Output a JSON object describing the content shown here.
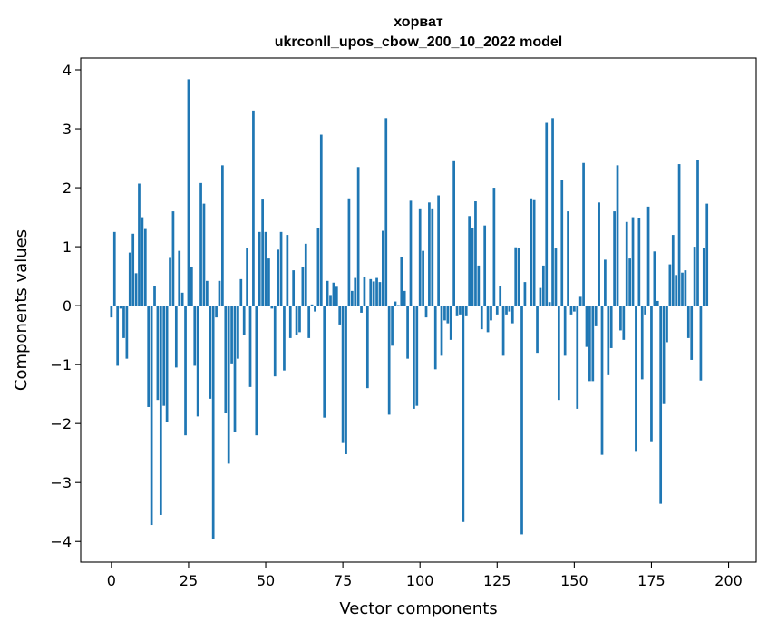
{
  "chart_data": {
    "type": "bar",
    "title": "хорват",
    "subtitle": "ukrconll_upos_cbow_200_10_2022 model",
    "xlabel": "Vector components",
    "ylabel": "Components values",
    "xlim": [
      -9.95,
      208.95
    ],
    "ylim": [
      -4.35,
      4.2
    ],
    "xticks": [
      0,
      25,
      50,
      75,
      100,
      125,
      150,
      175,
      200
    ],
    "yticks": [
      -4,
      -3,
      -2,
      -1,
      0,
      1,
      2,
      3,
      4
    ],
    "ytick_labels": [
      "−4",
      "−3",
      "−2",
      "−1",
      "0",
      "1",
      "2",
      "3",
      "4"
    ],
    "bar_color": "#1f77b4",
    "grid": false,
    "values": [
      -0.2,
      1.25,
      -1.02,
      -0.05,
      -0.55,
      -0.9,
      0.9,
      1.22,
      0.55,
      2.07,
      1.5,
      1.3,
      -1.72,
      -3.72,
      0.33,
      -1.6,
      -3.55,
      -1.7,
      -1.98,
      0.81,
      1.6,
      -1.05,
      0.93,
      0.22,
      -2.2,
      3.84,
      0.66,
      -1.02,
      -1.88,
      2.08,
      1.73,
      0.42,
      -1.58,
      -3.95,
      -0.2,
      0.42,
      2.38,
      -1.82,
      -2.68,
      -0.98,
      -2.15,
      -0.9,
      0.45,
      -0.5,
      0.98,
      -1.38,
      3.31,
      -2.2,
      1.25,
      1.8,
      1.25,
      0.8,
      -0.05,
      -1.2,
      0.95,
      1.25,
      -1.1,
      1.2,
      -0.55,
      0.6,
      -0.5,
      -0.45,
      0.66,
      1.05,
      -0.55,
      0.02,
      -0.1,
      1.32,
      2.9,
      -1.9,
      0.42,
      0.18,
      0.39,
      0.32,
      -0.32,
      -2.33,
      -2.52,
      1.82,
      0.25,
      0.47,
      2.35,
      -0.12,
      0.48,
      -1.4,
      0.45,
      0.41,
      0.47,
      0.4,
      1.27,
      3.18,
      -1.85,
      -0.68,
      0.07,
      0.01,
      0.82,
      0.25,
      -0.9,
      1.78,
      -1.75,
      -1.7,
      1.65,
      0.93,
      -0.2,
      1.75,
      1.65,
      -1.08,
      1.87,
      -0.85,
      -0.25,
      -0.3,
      -0.58,
      2.45,
      -0.18,
      -0.15,
      -3.67,
      -0.18,
      1.52,
      1.32,
      1.77,
      0.68,
      -0.4,
      1.36,
      -0.45,
      -0.25,
      2.0,
      -0.15,
      0.33,
      -0.85,
      -0.15,
      -0.1,
      -0.3,
      0.99,
      0.98,
      -3.88,
      0.4,
      0.0,
      1.82,
      1.79,
      -0.8,
      0.3,
      0.68,
      3.1,
      0.06,
      3.18,
      0.97,
      -1.6,
      2.13,
      -0.85,
      1.6,
      -0.15,
      -0.1,
      -1.75,
      0.15,
      2.42,
      -0.7,
      -1.28,
      -1.28,
      -0.35,
      1.75,
      -2.53,
      0.78,
      -1.18,
      -0.72,
      1.6,
      2.38,
      -0.42,
      -0.58,
      1.42,
      0.8,
      1.5,
      -2.48,
      1.48,
      -1.25,
      -0.15,
      1.68,
      -2.3,
      0.92,
      0.08,
      -3.36,
      -1.67,
      -0.62,
      0.7,
      1.2,
      0.52,
      2.4,
      0.56,
      0.6,
      -0.55,
      -0.92,
      1.0,
      2.47,
      -1.27,
      0.98,
      1.73
    ]
  }
}
